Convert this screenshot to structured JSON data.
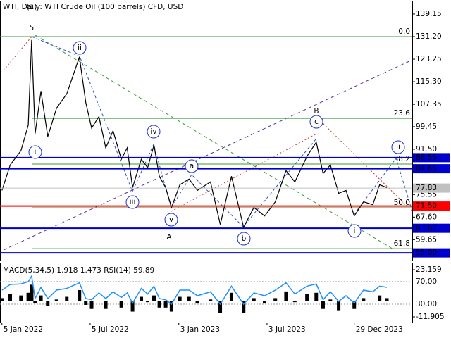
{
  "chart_data": [
    {
      "type": "line",
      "title": "WTI, Daily:  WTI Crude Oil (100 barrels) CFD, USD",
      "x": [
        "2022-01-05",
        "2022-01-22",
        "2022-02-13",
        "2022-02-28",
        "2022-03-07",
        "2022-03-14",
        "2022-03-26",
        "2022-04-09",
        "2022-04-27",
        "2022-05-18",
        "2022-06-13",
        "2022-06-26",
        "2022-07-08",
        "2022-07-23",
        "2022-08-06",
        "2022-08-21",
        "2022-09-07",
        "2022-09-19",
        "2022-09-30",
        "2022-10-18",
        "2022-10-31",
        "2022-11-13",
        "2022-11-24",
        "2022-12-07",
        "2022-12-19",
        "2023-01-05",
        "2023-01-24",
        "2023-02-10",
        "2023-03-09",
        "2023-03-29",
        "2023-04-21",
        "2023-05-16",
        "2023-06-06",
        "2023-06-28",
        "2023-07-20",
        "2023-08-11",
        "2023-08-29",
        "2023-09-23",
        "2023-10-12",
        "2023-10-26",
        "2023-11-10",
        "2023-11-27",
        "2023-12-12",
        "2023-12-29",
        "2024-01-17",
        "2024-02-05",
        "2024-02-19",
        "2024-03-05"
      ],
      "series": [
        {
          "color": "#000000",
          "values": [
            77,
            86,
            91,
            100,
            130,
            97,
            112,
            96,
            106,
            111,
            124,
            108,
            99,
            103,
            92,
            98,
            88,
            92,
            78,
            88,
            85,
            93,
            82,
            78,
            71,
            79,
            81,
            77,
            80,
            65,
            82,
            64,
            71,
            68,
            73,
            84,
            80,
            89,
            94,
            83,
            86,
            76,
            77,
            68,
            73,
            72,
            79,
            78
          ]
        }
      ],
      "xlim": [
        "2022-01-01",
        "2024-04-26"
      ],
      "xticks": [
        {
          "value": "2022-01-05",
          "label": "5 Jan 2022"
        },
        {
          "value": "2022-07-05",
          "label": "5 Jul 2022"
        },
        {
          "value": "2023-01-03",
          "label": "3 Jan 2023"
        },
        {
          "value": "2023-07-03",
          "label": "3 Jul 2023"
        },
        {
          "value": "2023-12-29",
          "label": "29 Dec 2023"
        }
      ],
      "ylim": [
        52.3,
        143.6
      ],
      "yticks": [
        139.15,
        {
          "value": 131.2,
          "label": "131.20"
        },
        123.25,
        {
          "value": 115.3,
          "label": "115.30"
        },
        107.35,
        99.45,
        {
          "value": 91.5,
          "label": "91.50"
        },
        75.55,
        {
          "value": 67.6,
          "label": "67.60"
        },
        59.65
      ],
      "levels": [
        {
          "value": 88.55,
          "color": "#0000cd"
        },
        {
          "value": 84.65,
          "color": "#0000cd"
        },
        {
          "value": 77.83,
          "color": "#c0c0c0"
        },
        {
          "value": 71.5,
          "label": "71.50",
          "color": "#ff0000"
        },
        {
          "value": 63.67,
          "color": "#0000cd"
        },
        {
          "value": 55,
          "label": "55.00",
          "color": "#0000cd"
        }
      ],
      "fibonacci": {
        "color": "#3c9a3c",
        "levels": [
          {
            "label": "0.0",
            "price": 131.2
          },
          {
            "label": "23.6",
            "price": 102.4
          },
          {
            "label": "38.2",
            "price": 86.3
          },
          {
            "label": "50.0",
            "price": 70.9
          },
          {
            "label": "61.8",
            "price": 56.5
          }
        ]
      },
      "annotations": [
        "(1)",
        "5",
        "ii",
        "i",
        "iv",
        "iii",
        "v",
        "A",
        "a",
        "b",
        "B",
        "c",
        "i",
        "ii"
      ]
    },
    {
      "type": "combo",
      "title": "MACD(5,34,5) 1.918 1.473 RSI(14) 59.89",
      "x": [
        "2022-01-05",
        "2022-01-22",
        "2022-02-13",
        "2022-02-28",
        "2022-03-07",
        "2022-03-14",
        "2022-03-26",
        "2022-04-09",
        "2022-04-27",
        "2022-05-18",
        "2022-06-13",
        "2022-06-26",
        "2022-07-08",
        "2022-07-23",
        "2022-08-06",
        "2022-08-21",
        "2022-09-07",
        "2022-09-19",
        "2022-09-30",
        "2022-10-18",
        "2022-10-31",
        "2022-11-13",
        "2022-11-24",
        "2022-12-07",
        "2022-12-19",
        "2023-01-05",
        "2023-01-24",
        "2023-02-10",
        "2023-03-09",
        "2023-03-29",
        "2023-04-21",
        "2023-05-16",
        "2023-06-06",
        "2023-06-28",
        "2023-07-20",
        "2023-08-11",
        "2023-08-29",
        "2023-09-23",
        "2023-10-12",
        "2023-10-26",
        "2023-11-10",
        "2023-11-27",
        "2023-12-12",
        "2023-12-29",
        "2024-01-17",
        "2024-02-05",
        "2024-02-19",
        "2024-03-05"
      ],
      "series": [
        {
          "type": "bar",
          "color": "#000000",
          "values": [
            2,
            5,
            4,
            6,
            12,
            -2,
            4,
            -4,
            1,
            3,
            8,
            -3,
            -6,
            0,
            -6,
            0,
            -5,
            0,
            -8,
            3,
            -1,
            4,
            -5,
            -5,
            -8,
            3,
            3,
            -2,
            1,
            -9,
            6,
            -9,
            2,
            -2,
            2,
            7,
            -1,
            5,
            6,
            -6,
            1,
            -7,
            0,
            -6,
            2,
            0,
            4,
            2
          ]
        },
        {
          "type": "line",
          "axis": "y2",
          "color": "#1e90ff",
          "values": [
            55,
            65,
            66,
            70,
            80,
            40,
            60,
            40,
            55,
            58,
            68,
            40,
            38,
            50,
            40,
            52,
            42,
            50,
            32,
            58,
            48,
            62,
            40,
            38,
            30,
            55,
            55,
            45,
            52,
            30,
            62,
            30,
            50,
            45,
            55,
            68,
            48,
            62,
            66,
            38,
            52,
            35,
            45,
            32,
            55,
            52,
            62,
            60
          ]
        }
      ],
      "xlim": [
        "2022-01-01",
        "2024-04-26"
      ],
      "ylim": [
        -16.09,
        27.35
      ],
      "yticks": [
        23.159,
        -11.905
      ],
      "y2lim": [
        -2.5,
        101.25
      ],
      "y2ticks": [
        {
          "value": 70,
          "label": "70.00"
        },
        {
          "value": 30,
          "label": "30.00"
        }
      ]
    }
  ]
}
